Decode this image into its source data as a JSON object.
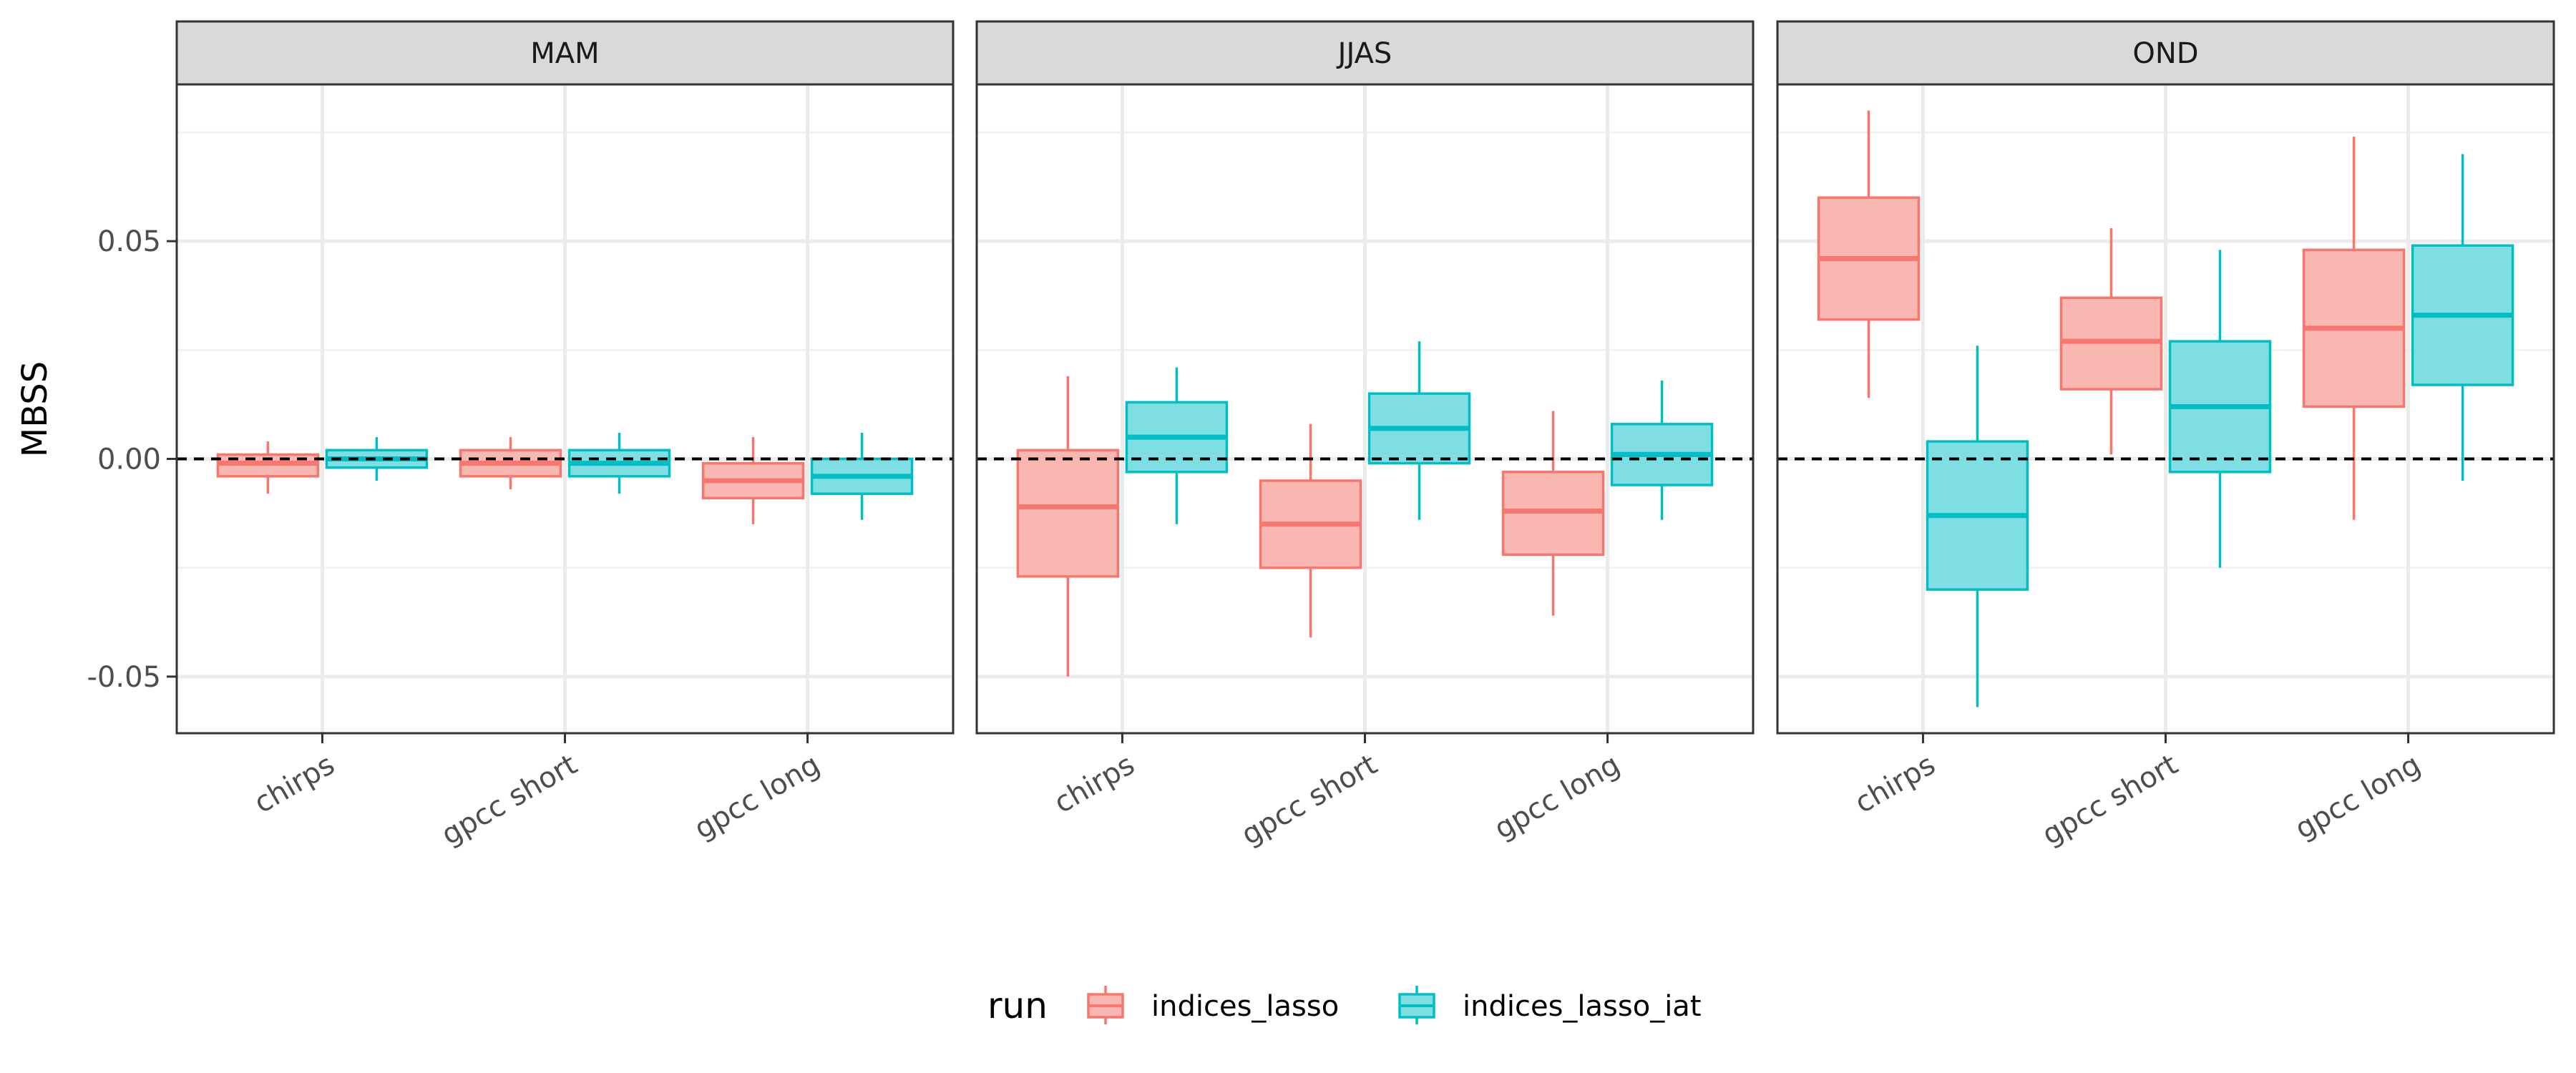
{
  "chart_data": {
    "type": "boxplot",
    "ylabel": "MBSS",
    "xlabel": "",
    "ylim": [
      -0.063,
      0.086
    ],
    "yticks": [
      -0.05,
      0.0,
      0.05
    ],
    "ytick_labels": [
      "-0.05",
      "0.00",
      "0.05"
    ],
    "reference_line": 0.0,
    "categories": [
      "chirps",
      "gpcc short",
      "gpcc long"
    ],
    "legend": {
      "title": "run",
      "entries": [
        {
          "name": "indices_lasso",
          "color": "#F8766D",
          "fill": "#F9B7B2"
        },
        {
          "name": "indices_lasso_iat",
          "color": "#00BFC4",
          "fill": "#7FDEE1"
        }
      ]
    },
    "panels": [
      {
        "title": "MAM",
        "series": [
          {
            "name": "indices_lasso",
            "boxes": [
              {
                "category": "chirps",
                "min": -0.008,
                "q1": -0.004,
                "median": -0.001,
                "q3": 0.001,
                "max": 0.004
              },
              {
                "category": "gpcc short",
                "min": -0.007,
                "q1": -0.004,
                "median": -0.001,
                "q3": 0.002,
                "max": 0.005
              },
              {
                "category": "gpcc long",
                "min": -0.015,
                "q1": -0.009,
                "median": -0.005,
                "q3": -0.001,
                "max": 0.005
              }
            ]
          },
          {
            "name": "indices_lasso_iat",
            "boxes": [
              {
                "category": "chirps",
                "min": -0.005,
                "q1": -0.002,
                "median": 0.0,
                "q3": 0.002,
                "max": 0.005
              },
              {
                "category": "gpcc short",
                "min": -0.008,
                "q1": -0.004,
                "median": -0.001,
                "q3": 0.002,
                "max": 0.006
              },
              {
                "category": "gpcc long",
                "min": -0.014,
                "q1": -0.008,
                "median": -0.004,
                "q3": 0.0,
                "max": 0.006
              }
            ]
          }
        ]
      },
      {
        "title": "JJAS",
        "series": [
          {
            "name": "indices_lasso",
            "boxes": [
              {
                "category": "chirps",
                "min": -0.05,
                "q1": -0.027,
                "median": -0.011,
                "q3": 0.002,
                "max": 0.019
              },
              {
                "category": "gpcc short",
                "min": -0.041,
                "q1": -0.025,
                "median": -0.015,
                "q3": -0.005,
                "max": 0.008
              },
              {
                "category": "gpcc long",
                "min": -0.036,
                "q1": -0.022,
                "median": -0.012,
                "q3": -0.003,
                "max": 0.011
              }
            ]
          },
          {
            "name": "indices_lasso_iat",
            "boxes": [
              {
                "category": "chirps",
                "min": -0.015,
                "q1": -0.003,
                "median": 0.005,
                "q3": 0.013,
                "max": 0.021
              },
              {
                "category": "gpcc short",
                "min": -0.014,
                "q1": -0.001,
                "median": 0.007,
                "q3": 0.015,
                "max": 0.027
              },
              {
                "category": "gpcc long",
                "min": -0.014,
                "q1": -0.006,
                "median": 0.001,
                "q3": 0.008,
                "max": 0.018
              }
            ]
          }
        ]
      },
      {
        "title": "OND",
        "series": [
          {
            "name": "indices_lasso",
            "boxes": [
              {
                "category": "chirps",
                "min": 0.014,
                "q1": 0.032,
                "median": 0.046,
                "q3": 0.06,
                "max": 0.08
              },
              {
                "category": "gpcc short",
                "min": 0.001,
                "q1": 0.016,
                "median": 0.027,
                "q3": 0.037,
                "max": 0.053
              },
              {
                "category": "gpcc long",
                "min": -0.014,
                "q1": 0.012,
                "median": 0.03,
                "q3": 0.048,
                "max": 0.074
              }
            ]
          },
          {
            "name": "indices_lasso_iat",
            "boxes": [
              {
                "category": "chirps",
                "min": -0.057,
                "q1": -0.03,
                "median": -0.013,
                "q3": 0.004,
                "max": 0.026
              },
              {
                "category": "gpcc short",
                "min": -0.025,
                "q1": -0.003,
                "median": 0.012,
                "q3": 0.027,
                "max": 0.048
              },
              {
                "category": "gpcc long",
                "min": -0.005,
                "q1": 0.017,
                "median": 0.033,
                "q3": 0.049,
                "max": 0.07
              }
            ]
          }
        ]
      }
    ]
  }
}
